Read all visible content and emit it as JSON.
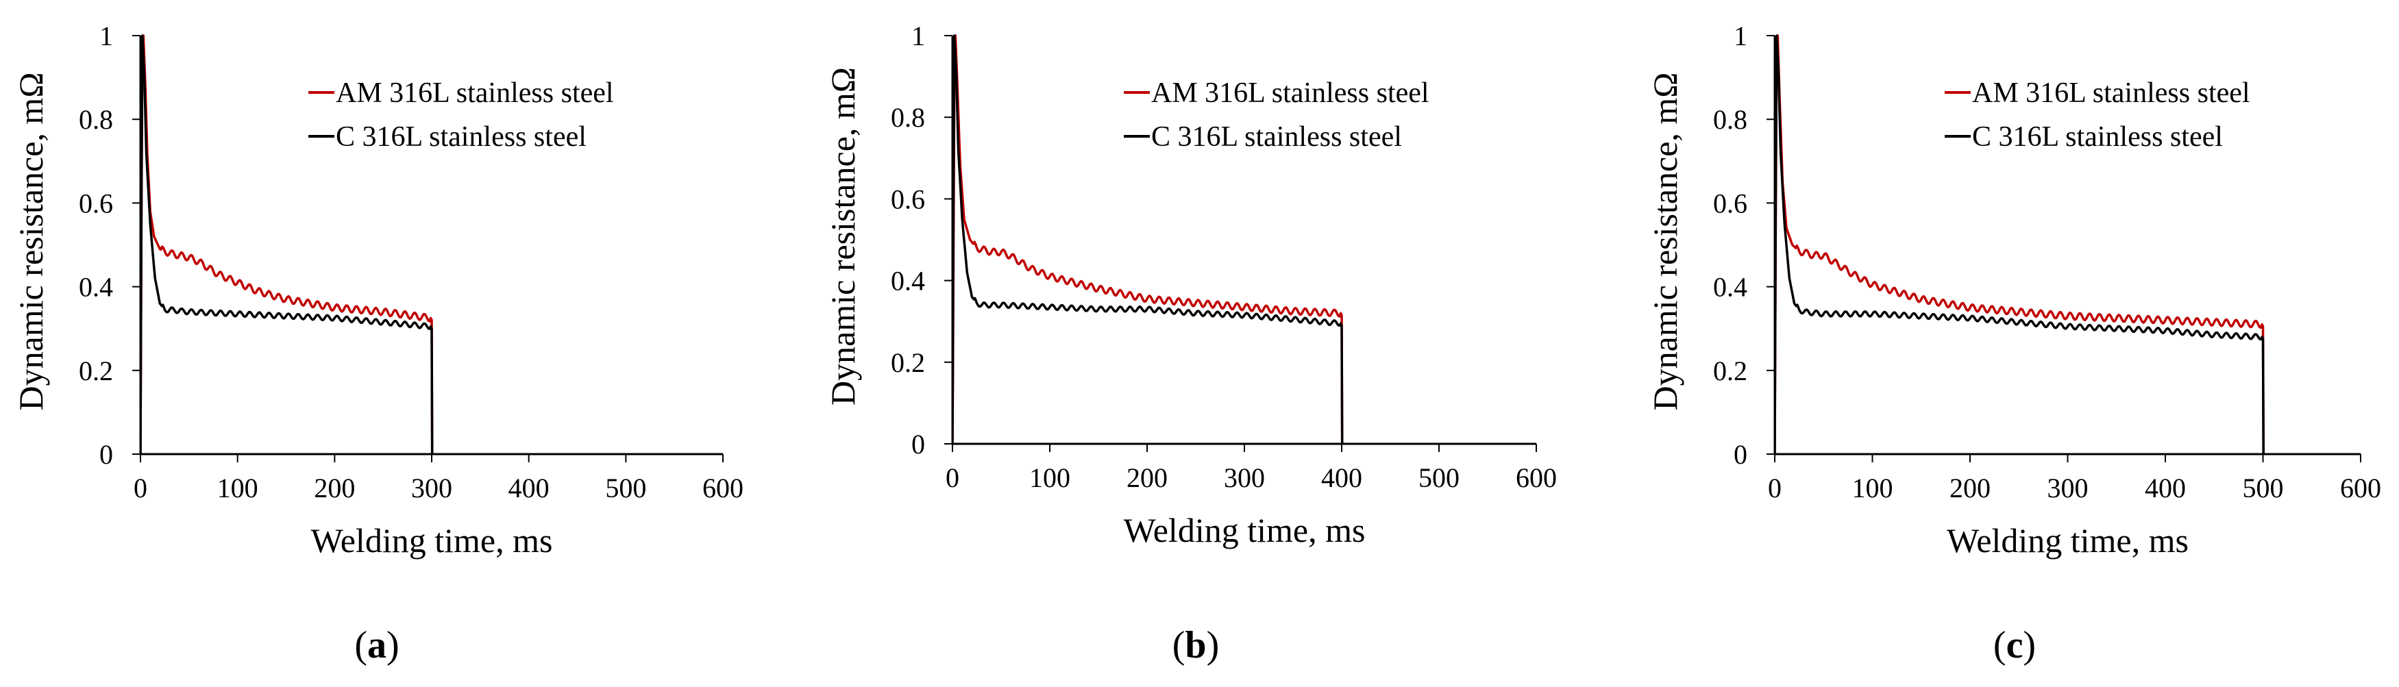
{
  "figure": {
    "colors": {
      "am": "#c00000",
      "c": "#000000",
      "axis": "#000000",
      "background": "#ffffff"
    }
  },
  "chart_data": [
    {
      "type": "line",
      "panel_label": "(a)",
      "panel_open": "(",
      "panel_letter": "a",
      "panel_close": ")",
      "title": "",
      "xlabel": "Welding time, ms",
      "ylabel": "Dynamic resistance, mΩ",
      "xlim": [
        0,
        600
      ],
      "ylim": [
        0,
        1
      ],
      "x_ticks": [
        "0",
        "100",
        "200",
        "300",
        "400",
        "500",
        "600"
      ],
      "y_ticks": [
        "0",
        "0.2",
        "0.4",
        "0.6",
        "0.8",
        "1"
      ],
      "grid": false,
      "legend_position": "top-right",
      "weld_end_ms": 300,
      "series": [
        {
          "name": "AM 316L stainless steel",
          "color": "#c00000",
          "ripple": 0.008,
          "x": [
            0,
            1,
            2,
            3,
            5,
            7,
            10,
            14,
            20,
            30,
            40,
            50,
            60,
            80,
            100,
            120,
            150,
            200,
            250,
            299,
            300,
            300.5
          ],
          "y": [
            0,
            0.55,
            0.98,
            1.0,
            0.88,
            0.72,
            0.58,
            0.52,
            0.49,
            0.48,
            0.475,
            0.47,
            0.46,
            0.43,
            0.41,
            0.39,
            0.37,
            0.35,
            0.34,
            0.325,
            0.32,
            0
          ]
        },
        {
          "name": "C 316L stainless steel",
          "color": "#000000",
          "ripple": 0.006,
          "x": [
            0,
            1,
            2,
            4,
            6,
            10,
            15,
            20,
            25,
            30,
            50,
            100,
            150,
            200,
            250,
            299,
            300,
            300.5
          ],
          "y": [
            0,
            0.6,
            1.0,
            0.9,
            0.72,
            0.55,
            0.42,
            0.36,
            0.345,
            0.345,
            0.34,
            0.335,
            0.33,
            0.325,
            0.315,
            0.305,
            0.3,
            0
          ]
        }
      ]
    },
    {
      "type": "line",
      "panel_label": "(b)",
      "panel_open": "(",
      "panel_letter": "b",
      "panel_close": ")",
      "title": "",
      "xlabel": "Welding time, ms",
      "ylabel": "Dynamic resistance, mΩ",
      "xlim": [
        0,
        600
      ],
      "ylim": [
        0,
        1
      ],
      "x_ticks": [
        "0",
        "100",
        "200",
        "300",
        "400",
        "500",
        "600"
      ],
      "y_ticks": [
        "0",
        "0.2",
        "0.4",
        "0.6",
        "0.8",
        "1"
      ],
      "grid": false,
      "legend_position": "top-right",
      "weld_end_ms": 400,
      "series": [
        {
          "name": "AM 316L stainless steel",
          "color": "#c00000",
          "ripple": 0.008,
          "x": [
            0,
            0.5,
            1,
            2,
            3,
            5,
            8,
            12,
            18,
            25,
            40,
            50,
            60,
            80,
            100,
            150,
            200,
            250,
            300,
            350,
            399,
            400,
            400.5
          ],
          "y": [
            0,
            0.18,
            0.45,
            0.9,
            1.0,
            0.88,
            0.68,
            0.55,
            0.5,
            0.48,
            0.47,
            0.47,
            0.46,
            0.43,
            0.41,
            0.38,
            0.355,
            0.345,
            0.335,
            0.325,
            0.32,
            0.315,
            0
          ]
        },
        {
          "name": "C 316L stainless steel",
          "color": "#000000",
          "ripple": 0.006,
          "x": [
            0,
            1,
            2,
            4,
            6,
            10,
            15,
            20,
            25,
            30,
            50,
            100,
            150,
            200,
            250,
            300,
            350,
            399,
            400,
            400.5
          ],
          "y": [
            0,
            0.6,
            1.0,
            0.9,
            0.72,
            0.55,
            0.42,
            0.36,
            0.345,
            0.34,
            0.34,
            0.335,
            0.33,
            0.33,
            0.32,
            0.315,
            0.305,
            0.295,
            0.29,
            0
          ]
        }
      ]
    },
    {
      "type": "line",
      "panel_label": "(c)",
      "panel_open": "(",
      "panel_letter": "c",
      "panel_close": ")",
      "title": "",
      "xlabel": "Welding time, ms",
      "ylabel": "Dynamic resistance, mΩ",
      "xlim": [
        0,
        600
      ],
      "ylim": [
        0,
        1
      ],
      "x_ticks": [
        "0",
        "100",
        "200",
        "300",
        "400",
        "500",
        "600"
      ],
      "y_ticks": [
        "0",
        "0.2",
        "0.4",
        "0.6",
        "0.8",
        "1"
      ],
      "grid": false,
      "legend_position": "top-right",
      "weld_end_ms": 500,
      "series": [
        {
          "name": "AM 316L stainless steel",
          "color": "#c00000",
          "ripple": 0.008,
          "x": [
            0,
            1,
            2,
            3,
            5,
            8,
            12,
            18,
            25,
            40,
            50,
            60,
            80,
            100,
            150,
            200,
            250,
            300,
            350,
            400,
            450,
            499,
            500,
            500.5
          ],
          "y": [
            0,
            0.55,
            0.98,
            1.0,
            0.85,
            0.65,
            0.54,
            0.5,
            0.485,
            0.475,
            0.475,
            0.46,
            0.43,
            0.405,
            0.37,
            0.35,
            0.34,
            0.33,
            0.325,
            0.32,
            0.315,
            0.31,
            0.305,
            0
          ]
        },
        {
          "name": "C 316L stainless steel",
          "color": "#000000",
          "ripple": 0.006,
          "x": [
            0,
            1,
            2,
            4,
            6,
            10,
            15,
            20,
            25,
            30,
            50,
            100,
            150,
            200,
            250,
            300,
            350,
            400,
            450,
            499,
            500,
            500.5
          ],
          "y": [
            0,
            0.6,
            1.0,
            0.9,
            0.72,
            0.55,
            0.42,
            0.36,
            0.345,
            0.34,
            0.335,
            0.335,
            0.33,
            0.325,
            0.315,
            0.305,
            0.3,
            0.295,
            0.285,
            0.28,
            0.275,
            0
          ]
        }
      ]
    }
  ]
}
